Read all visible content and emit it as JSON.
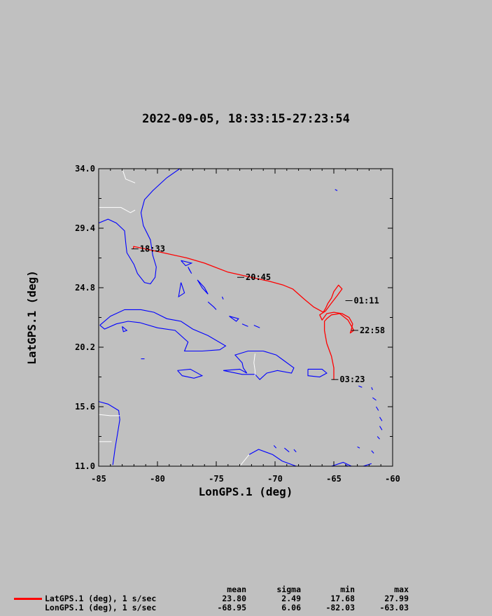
{
  "title": "2022-09-05, 18:33:15-27:23:54",
  "chart_data": {
    "type": "line",
    "xlabel": "LonGPS.1 (deg)",
    "ylabel": "LatGPS.1 (deg)",
    "xlim": [
      -85,
      -60
    ],
    "ylim": [
      11.0,
      34.0
    ],
    "xticks": [
      "-85",
      "-80",
      "-75",
      "-70",
      "-65",
      "-60"
    ],
    "xtick_values": [
      -85,
      -80,
      -75,
      -70,
      -65,
      -60
    ],
    "yticks": [
      "34.0",
      "29.4",
      "24.8",
      "20.2",
      "15.6",
      "11.0"
    ],
    "ytick_values": [
      34.0,
      29.4,
      24.8,
      20.2,
      15.6,
      11.0
    ],
    "series": [
      {
        "color": "#ff0000",
        "x": [
          -82.05,
          -82.03,
          -81.0,
          -79.5,
          -77.5,
          -76.0,
          -74.0,
          -72.0,
          -70.5,
          -69.3,
          -68.5,
          -67.5,
          -66.7,
          -65.9,
          -65.7,
          -65.5,
          -65.2,
          -65.0,
          -64.6,
          -64.3,
          -64.7,
          -65.3,
          -65.7,
          -66.2,
          -66.0,
          -65.6,
          -65.0,
          -64.3,
          -63.7,
          -63.4,
          -63.5,
          -63.6,
          -63.3,
          -63.8,
          -64.5,
          -65.2,
          -65.6,
          -65.8,
          -65.8,
          -65.6,
          -65.2,
          -65.0,
          -65.0,
          -65.0
        ],
        "y": [
          27.8,
          27.99,
          27.8,
          27.5,
          27.1,
          26.7,
          26.0,
          25.6,
          25.3,
          25.0,
          24.7,
          23.9,
          23.3,
          22.9,
          23.2,
          23.6,
          24.0,
          24.5,
          25.0,
          24.7,
          24.2,
          23.5,
          23.0,
          22.7,
          22.3,
          22.8,
          22.9,
          22.8,
          22.5,
          22.0,
          21.6,
          21.3,
          21.5,
          22.3,
          22.8,
          22.7,
          22.4,
          22.2,
          21.5,
          20.5,
          19.5,
          18.6,
          18.0,
          17.68
        ]
      }
    ],
    "annotations": [
      {
        "text": "18:33",
        "x": -81.5,
        "y": 27.8
      },
      {
        "text": "20:45",
        "x": -72.5,
        "y": 25.6
      },
      {
        "text": "01:11",
        "x": -63.3,
        "y": 23.8
      },
      {
        "text": "22:58",
        "x": -62.8,
        "y": 21.5
      },
      {
        "text": "03:23",
        "x": -64.5,
        "y": 17.7
      }
    ],
    "grid": false
  },
  "stats": {
    "headers": {
      "mean": "mean",
      "sigma": "sigma",
      "min": "min",
      "max": "max"
    },
    "rows": [
      {
        "label": "LatGPS.1 (deg), 1 s/sec",
        "mean": "23.80",
        "sigma": "2.49",
        "min": "17.68",
        "max": "27.99",
        "color": "#ff0000"
      },
      {
        "label": "LonGPS.1 (deg), 1 s/sec",
        "mean": "-68.95",
        "sigma": "6.06",
        "min": "-82.03",
        "max": "-63.03"
      }
    ]
  }
}
